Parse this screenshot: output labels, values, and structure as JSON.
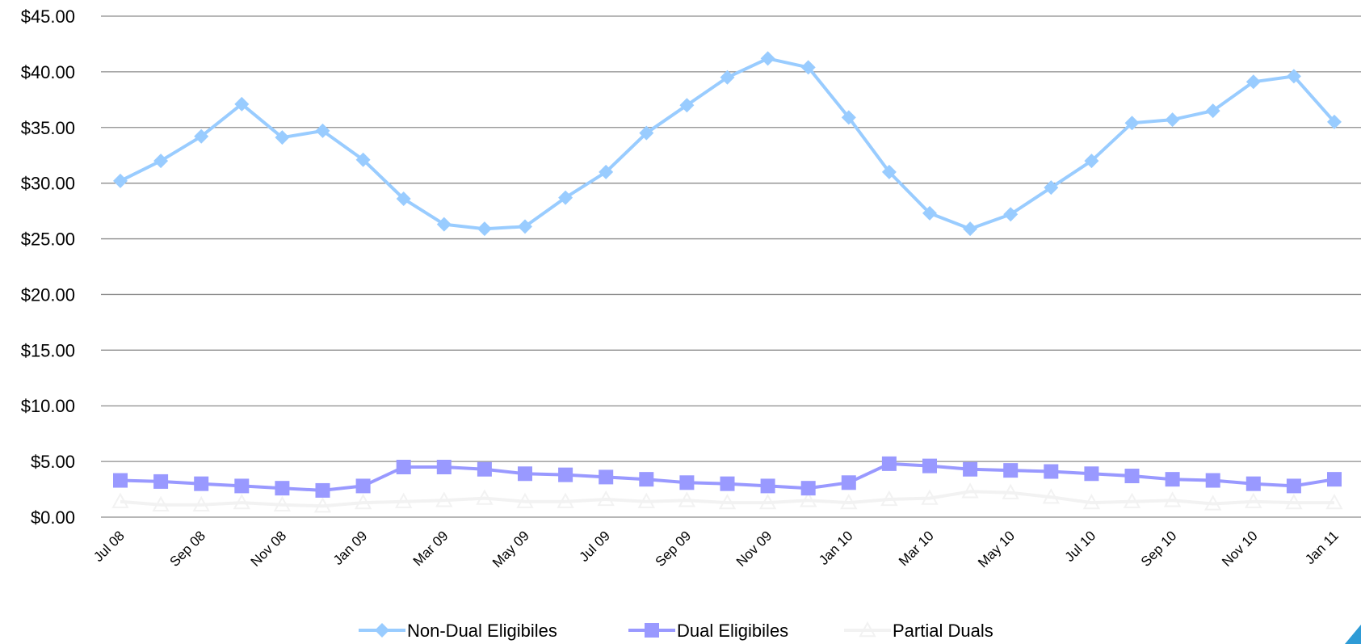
{
  "chart_data": {
    "type": "line",
    "title": "",
    "xlabel": "",
    "ylabel": "",
    "ylim": [
      0,
      45
    ],
    "yticks": [
      "$0.00",
      "$5.00",
      "$10.00",
      "$15.00",
      "$20.00",
      "$25.00",
      "$30.00",
      "$35.00",
      "$40.00",
      "$45.00"
    ],
    "ytick_values": [
      0,
      5,
      10,
      15,
      20,
      25,
      30,
      35,
      40,
      45
    ],
    "x": [
      "Jul 08",
      "Aug 08",
      "Sep 08",
      "Oct 08",
      "Nov 08",
      "Dec 08",
      "Jan 09",
      "Feb 09",
      "Mar 09",
      "Apr 09",
      "May 09",
      "Jun 09",
      "Jul 09",
      "Aug 09",
      "Sep 09",
      "Oct 09",
      "Nov 09",
      "Dec 09",
      "Jan 10",
      "Feb 10",
      "Mar 10",
      "Apr 10",
      "May 10",
      "Jun 10",
      "Jul 10",
      "Aug 10",
      "Sep 10",
      "Oct 10",
      "Nov 10",
      "Dec 10",
      "Jan 11"
    ],
    "xtick_labels": [
      "Jul 08",
      "Sep 08",
      "Nov 08",
      "Jan 09",
      "Mar 09",
      "May 09",
      "Jul 09",
      "Sep 09",
      "Nov 09",
      "Jan 10",
      "Mar 10",
      "May 10",
      "Jul 10",
      "Sep 10",
      "Nov 10",
      "Jan 11"
    ],
    "grid": true,
    "legend_position": "bottom",
    "series": [
      {
        "name": "Non-Dual Eligibiles",
        "marker": "diamond",
        "color": "#99ccff",
        "values": [
          30.2,
          32.0,
          34.2,
          37.1,
          34.1,
          34.7,
          32.1,
          28.6,
          26.3,
          25.9,
          26.1,
          28.7,
          31.0,
          34.5,
          37.0,
          39.5,
          41.2,
          40.4,
          35.9,
          31.0,
          27.3,
          25.9,
          27.2,
          29.6,
          32.0,
          35.4,
          35.7,
          36.5,
          39.1,
          39.6,
          35.5
        ]
      },
      {
        "name": "Dual Eligibiles",
        "marker": "square",
        "color": "#9999ff",
        "values": [
          3.3,
          3.2,
          3.0,
          2.8,
          2.6,
          2.4,
          2.8,
          4.5,
          4.5,
          4.3,
          3.9,
          3.8,
          3.6,
          3.4,
          3.1,
          3.0,
          2.8,
          2.6,
          3.1,
          4.8,
          4.6,
          4.3,
          4.2,
          4.1,
          3.9,
          3.7,
          3.4,
          3.3,
          3.0,
          2.8,
          3.4
        ]
      },
      {
        "name": "Partial Duals",
        "marker": "triangle",
        "color": "#f2f2f2",
        "values": [
          1.4,
          1.1,
          1.1,
          1.3,
          1.1,
          1.0,
          1.3,
          1.4,
          1.5,
          1.7,
          1.4,
          1.4,
          1.6,
          1.4,
          1.5,
          1.3,
          1.3,
          1.5,
          1.3,
          1.6,
          1.7,
          2.3,
          2.2,
          1.8,
          1.3,
          1.4,
          1.5,
          1.2,
          1.4,
          1.3,
          1.3
        ]
      }
    ]
  }
}
